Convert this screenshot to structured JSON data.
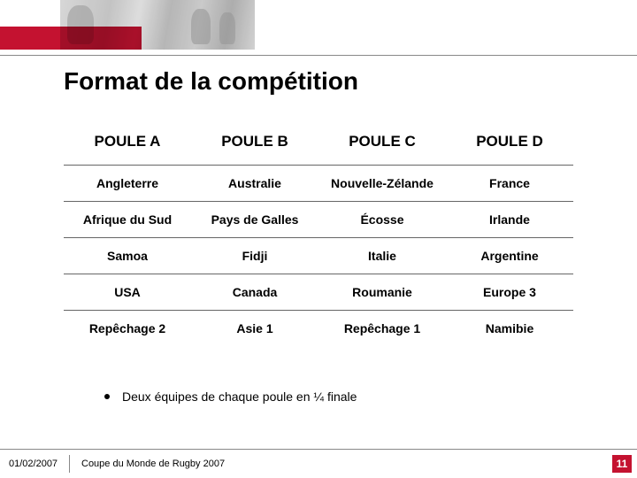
{
  "colors": {
    "accent": "#c41230",
    "rule": "#888888",
    "text": "#000000",
    "background": "#ffffff"
  },
  "title": "Format de la compétition",
  "table": {
    "type": "table",
    "columns": [
      "POULE A",
      "POULE B",
      "POULE C",
      "POULE D"
    ],
    "rows": [
      [
        "Angleterre",
        "Australie",
        "Nouvelle-Zélande",
        "France"
      ],
      [
        "Afrique du Sud",
        "Pays de Galles",
        "Écosse",
        "Irlande"
      ],
      [
        "Samoa",
        "Fidji",
        "Italie",
        "Argentine"
      ],
      [
        "USA",
        "Canada",
        "Roumanie",
        "Europe 3"
      ],
      [
        "Repêchage 2",
        "Asie 1",
        "Repêchage 1",
        "Namibie"
      ]
    ],
    "header_fontsize": 17,
    "cell_fontsize": 14,
    "cell_fontweight": "bold",
    "border_color": "#666666"
  },
  "bullet": "Deux équipes de chaque poule en ¼ finale",
  "footer": {
    "date": "01/02/2007",
    "title": "Coupe du Monde de Rugby 2007",
    "page_number": "11"
  }
}
